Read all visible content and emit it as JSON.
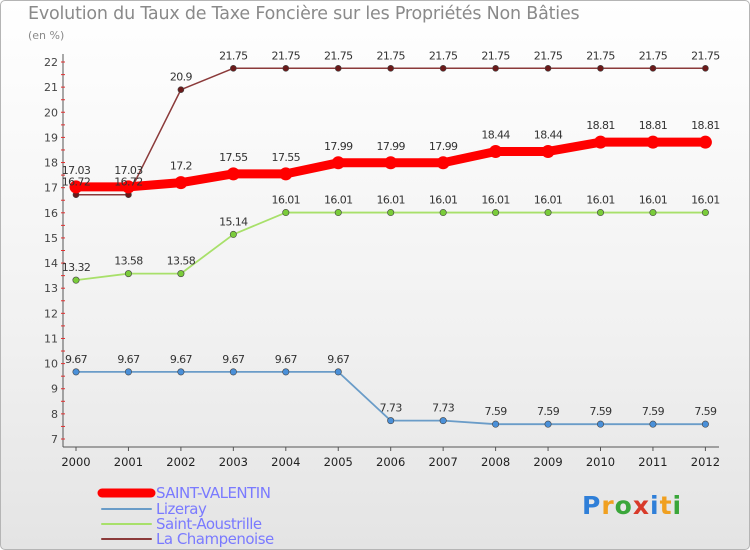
{
  "header": {
    "title": "Evolution du Taux de Taxe Foncière sur les Propriétés Non Bâties",
    "unit": "(en %)"
  },
  "logo": {
    "text": "Proxiti"
  },
  "chart_data": {
    "type": "line",
    "title": "Evolution du Taux de Taxe Foncière sur les Propriétés Non Bâties",
    "ylabel": "(en %)",
    "xlabel": "",
    "ylim": [
      7,
      22
    ],
    "yticks": [
      7,
      8,
      9,
      10,
      11,
      12,
      13,
      14,
      15,
      16,
      17,
      18,
      19,
      20,
      21,
      22
    ],
    "grid": false,
    "legend": "bottom-left",
    "categories": [
      "2000",
      "2001",
      "2002",
      "2003",
      "2004",
      "2005",
      "2006",
      "2007",
      "2008",
      "2009",
      "2010",
      "2011",
      "2012"
    ],
    "series": [
      {
        "name": "SAINT-VALENTIN",
        "color": "#ff0000",
        "marker_color": "#ff0000",
        "legend_text_color": "#7a7aff",
        "values": [
          17.03,
          17.03,
          17.2,
          17.55,
          17.55,
          17.99,
          17.99,
          17.99,
          18.44,
          18.44,
          18.81,
          18.81,
          18.81
        ],
        "labels": [
          "17.03",
          "17.03",
          "17.2",
          "17.55",
          "17.55",
          "17.99",
          "17.99",
          "17.99",
          "18.44",
          "18.44",
          "18.81",
          "18.81",
          "18.81"
        ]
      },
      {
        "name": "Lizeray",
        "color": "#6a9cc8",
        "marker_color": "#4a90d9",
        "legend_text_color": "#7a7aff",
        "values": [
          9.67,
          9.67,
          9.67,
          9.67,
          9.67,
          9.67,
          7.73,
          7.73,
          7.59,
          7.59,
          7.59,
          7.59,
          7.59
        ],
        "labels": [
          "9.67",
          "9.67",
          "9.67",
          "9.67",
          "9.67",
          "9.67",
          "7.73",
          "7.73",
          "7.59",
          "7.59",
          "7.59",
          "7.59",
          "7.59"
        ]
      },
      {
        "name": "Saint-Aoustrille",
        "color": "#a8e06a",
        "marker_color": "#7acc3a",
        "legend_text_color": "#7a7aff",
        "values": [
          13.32,
          13.58,
          13.58,
          15.14,
          16.01,
          16.01,
          16.01,
          16.01,
          16.01,
          16.01,
          16.01,
          16.01,
          16.01
        ],
        "labels": [
          "13.32",
          "13.58",
          "13.58",
          "15.14",
          "16.01",
          "16.01",
          "16.01",
          "16.01",
          "16.01",
          "16.01",
          "16.01",
          "16.01",
          "16.01"
        ]
      },
      {
        "name": "La Champenoise",
        "color": "#8b3a3a",
        "marker_color": "#6b1a1a",
        "legend_text_color": "#7a7aff",
        "values": [
          16.72,
          16.72,
          20.9,
          21.75,
          21.75,
          21.75,
          21.75,
          21.75,
          21.75,
          21.75,
          21.75,
          21.75,
          21.75
        ],
        "labels": [
          "16.72",
          "16.72",
          "20.9",
          "21.75",
          "21.75",
          "21.75",
          "21.75",
          "21.75",
          "21.75",
          "21.75",
          "21.75",
          "21.75",
          "21.75"
        ]
      }
    ]
  }
}
